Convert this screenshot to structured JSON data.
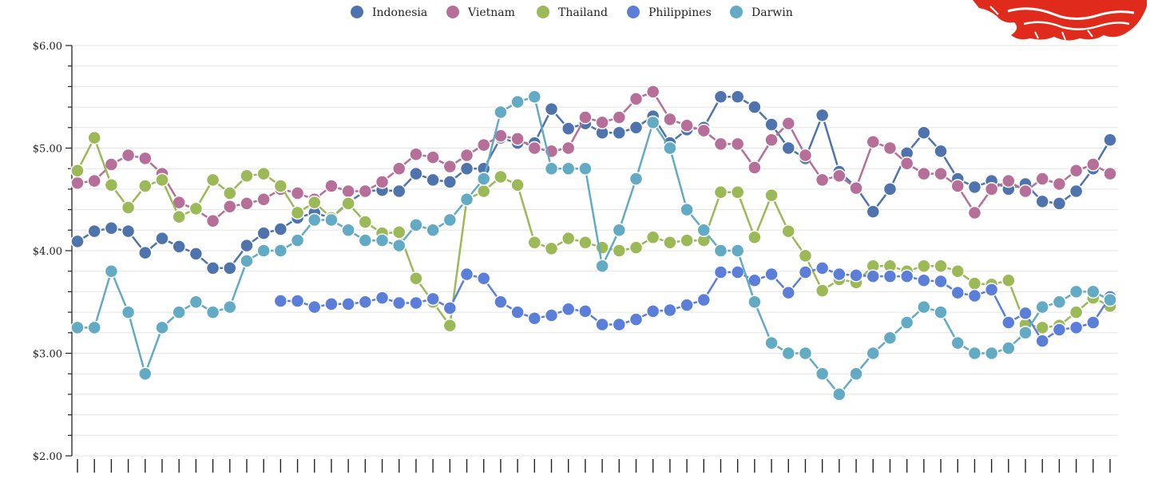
{
  "chart_data": {
    "type": "line",
    "title": "",
    "xlabel": "",
    "ylabel": "",
    "ylim": [
      2,
      6
    ],
    "yticks": [
      "$2.00",
      "$3.00",
      "$4.00",
      "$5.00",
      "$6.00"
    ],
    "grid": true,
    "legend_position": "top-center",
    "series": [
      {
        "name": "Indonesia",
        "color": "#4f74ad",
        "values": [
          4.09,
          4.19,
          4.22,
          4.19,
          3.98,
          4.12,
          4.04,
          3.97,
          3.83,
          3.83,
          4.05,
          4.17,
          4.21,
          4.32,
          4.37,
          4.32,
          4.47,
          4.58,
          4.59,
          4.58,
          4.75,
          4.69,
          4.67,
          4.8,
          4.8,
          5.1,
          5.05,
          5.05,
          5.38,
          5.19,
          5.24,
          5.15,
          5.15,
          5.2,
          5.31,
          5.05,
          5.18,
          5.2,
          5.5,
          5.5,
          5.4,
          5.23,
          5.0,
          4.9,
          5.32,
          4.77,
          4.62,
          4.38,
          4.6,
          4.95,
          5.15,
          4.97,
          4.7,
          4.62,
          4.68,
          4.6,
          4.65,
          4.48,
          4.46,
          4.58,
          4.8,
          5.08
        ]
      },
      {
        "name": "Vietnam",
        "color": "#b56f99",
        "values": [
          4.66,
          4.68,
          4.84,
          4.93,
          4.9,
          4.75,
          4.47,
          4.4,
          4.29,
          4.43,
          4.46,
          4.5,
          4.6,
          4.56,
          4.5,
          4.63,
          4.58,
          4.58,
          4.67,
          4.8,
          4.94,
          4.91,
          4.82,
          4.93,
          5.03,
          5.12,
          5.09,
          5.0,
          4.97,
          5.0,
          5.3,
          5.25,
          5.3,
          5.48,
          5.55,
          5.28,
          5.22,
          5.17,
          5.04,
          5.04,
          4.81,
          5.08,
          5.24,
          4.93,
          4.69,
          4.73,
          4.61,
          5.06,
          5.0,
          4.85,
          4.75,
          4.75,
          4.63,
          4.37,
          4.6,
          4.68,
          4.58,
          4.7,
          4.65,
          4.78,
          4.84,
          4.75
        ]
      },
      {
        "name": "Thailand",
        "color": "#9cb957",
        "values": [
          4.78,
          5.1,
          4.64,
          4.42,
          4.63,
          4.69,
          4.33,
          4.41,
          4.69,
          4.56,
          4.73,
          4.75,
          4.63,
          4.37,
          4.47,
          4.32,
          4.46,
          4.28,
          4.17,
          4.18,
          3.73,
          3.5,
          3.27,
          4.5,
          4.58,
          4.72,
          4.64,
          4.08,
          4.02,
          4.12,
          4.08,
          4.03,
          4.0,
          4.03,
          4.13,
          4.08,
          4.1,
          4.1,
          4.57,
          4.57,
          4.13,
          4.54,
          4.19,
          3.95,
          3.61,
          3.72,
          3.69,
          3.85,
          3.85,
          3.8,
          3.85,
          3.85,
          3.8,
          3.68,
          3.67,
          3.71,
          3.28,
          3.25,
          3.27,
          3.4,
          3.54,
          3.46
        ]
      },
      {
        "name": "Philippines",
        "color": "#5b7fd9",
        "values": [
          null,
          null,
          null,
          null,
          null,
          null,
          null,
          null,
          null,
          null,
          null,
          null,
          3.51,
          3.51,
          3.45,
          3.48,
          3.48,
          3.5,
          3.54,
          3.49,
          3.49,
          3.53,
          3.44,
          3.77,
          3.73,
          3.5,
          3.4,
          3.34,
          3.37,
          3.43,
          3.41,
          3.28,
          3.28,
          3.33,
          3.41,
          3.42,
          3.47,
          3.52,
          3.79,
          3.79,
          3.71,
          3.77,
          3.59,
          3.79,
          3.83,
          3.77,
          3.76,
          3.75,
          3.75,
          3.75,
          3.71,
          3.7,
          3.59,
          3.56,
          3.62,
          3.3,
          3.39,
          3.12,
          3.23,
          3.25,
          3.3,
          3.55
        ]
      },
      {
        "name": "Darwin",
        "color": "#63aac4",
        "values": [
          3.25,
          3.25,
          3.8,
          3.4,
          2.8,
          3.25,
          3.4,
          3.5,
          3.4,
          3.45,
          3.9,
          4.0,
          4.0,
          4.1,
          4.3,
          4.3,
          4.2,
          4.1,
          4.1,
          4.05,
          4.25,
          4.2,
          4.3,
          4.5,
          4.7,
          5.35,
          5.45,
          5.5,
          4.8,
          4.8,
          4.8,
          3.85,
          4.2,
          4.7,
          5.25,
          5.0,
          4.4,
          4.2,
          4.0,
          4.0,
          3.5,
          3.1,
          3.0,
          3.0,
          2.8,
          2.6,
          2.8,
          3.0,
          3.15,
          3.3,
          3.45,
          3.4,
          3.1,
          3.0,
          3.0,
          3.05,
          3.2,
          3.45,
          3.5,
          3.6,
          3.6,
          3.52
        ]
      }
    ]
  }
}
